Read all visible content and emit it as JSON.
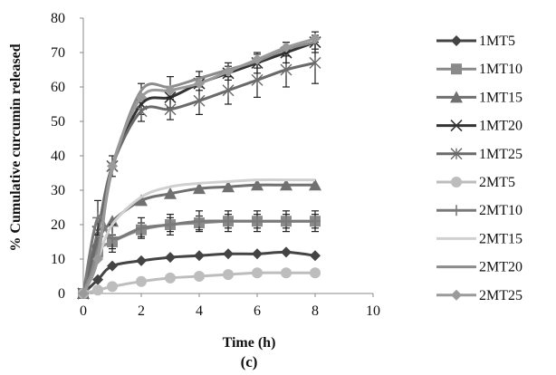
{
  "chart_data": {
    "type": "line",
    "title": "",
    "caption": "(c)",
    "xlabel": "Time (h)",
    "ylabel": "% Cumulative curcumin released",
    "xlim": [
      0,
      10
    ],
    "ylim": [
      0,
      80
    ],
    "xticks": [
      "0",
      "2",
      "4",
      "6",
      "8",
      "10"
    ],
    "yticks": [
      "0",
      "10",
      "20",
      "30",
      "40",
      "50",
      "60",
      "70",
      "80"
    ],
    "grid": false,
    "legend_position": "right",
    "x": [
      0,
      0.5,
      1,
      2,
      3,
      4,
      5,
      6,
      7,
      8
    ],
    "series": [
      {
        "name": "1MT5",
        "marker": "diamond",
        "color": "#444444",
        "values": [
          0,
          4,
          8,
          9.5,
          10.5,
          11,
          11.5,
          11.5,
          12,
          11
        ],
        "err": [
          0,
          0,
          0,
          0,
          0,
          0,
          0,
          0,
          0,
          0
        ]
      },
      {
        "name": "1MT10",
        "marker": "square",
        "color": "#8a8a8a",
        "values": [
          0,
          12,
          15,
          18.5,
          20,
          20.5,
          21,
          21,
          21,
          21
        ],
        "err": [
          0,
          0,
          2,
          2,
          2,
          2,
          2,
          2,
          2,
          2
        ]
      },
      {
        "name": "1MT15",
        "marker": "triangle",
        "color": "#707070",
        "values": [
          0,
          15,
          21,
          27,
          29,
          30.5,
          31,
          31.5,
          31.5,
          31.5
        ],
        "err": [
          0,
          0,
          0,
          0,
          0,
          0,
          0,
          0,
          0,
          0
        ]
      },
      {
        "name": "1MT20",
        "marker": "x",
        "color": "#333333",
        "values": [
          0,
          18,
          37,
          55,
          57,
          61,
          64,
          67,
          70,
          73
        ],
        "err": [
          0,
          0,
          3,
          3,
          3,
          2,
          2,
          3,
          3,
          3
        ]
      },
      {
        "name": "1MT25",
        "marker": "star",
        "color": "#6a6a6a",
        "values": [
          0,
          18,
          37,
          53,
          53.5,
          56,
          59,
          62,
          65,
          67
        ],
        "err": [
          0,
          0,
          0,
          3,
          3,
          4,
          4,
          5,
          5,
          6
        ]
      },
      {
        "name": "2MT5",
        "marker": "circle",
        "color": "#bdbdbd",
        "values": [
          0,
          1,
          2,
          3.5,
          4.5,
          5,
          5.5,
          6,
          6,
          6
        ],
        "err": [
          0,
          0,
          0,
          0,
          0,
          0,
          0,
          0,
          0,
          0
        ]
      },
      {
        "name": "2MT10",
        "marker": "plus",
        "color": "#7a7a7a",
        "values": [
          0,
          22,
          16,
          19,
          20,
          21,
          21,
          21,
          21,
          21
        ],
        "err": [
          0,
          5,
          4,
          3,
          3,
          3,
          3,
          3,
          3,
          3
        ]
      },
      {
        "name": "2MT15",
        "marker": "none",
        "color": "#d0d0d0",
        "values": [
          0,
          10,
          20,
          28,
          31,
          32,
          32.5,
          33,
          33,
          33
        ],
        "err": [
          0,
          0,
          0,
          0,
          0,
          0,
          0,
          0,
          0,
          0
        ]
      },
      {
        "name": "2MT20",
        "marker": "none",
        "color": "#8c8c8c",
        "values": [
          0,
          12,
          36,
          59,
          60,
          62.5,
          65,
          67.5,
          71,
          73
        ],
        "err": [
          0,
          0,
          0,
          2,
          3,
          2,
          2,
          2,
          2,
          2
        ]
      },
      {
        "name": "2MT25",
        "marker": "diamond",
        "color": "#9a9a9a",
        "values": [
          0,
          10,
          37,
          57,
          59,
          61,
          64.5,
          68,
          71.5,
          74
        ],
        "err": [
          0,
          0,
          0,
          0,
          0,
          0,
          0,
          0,
          0,
          0
        ]
      }
    ]
  }
}
